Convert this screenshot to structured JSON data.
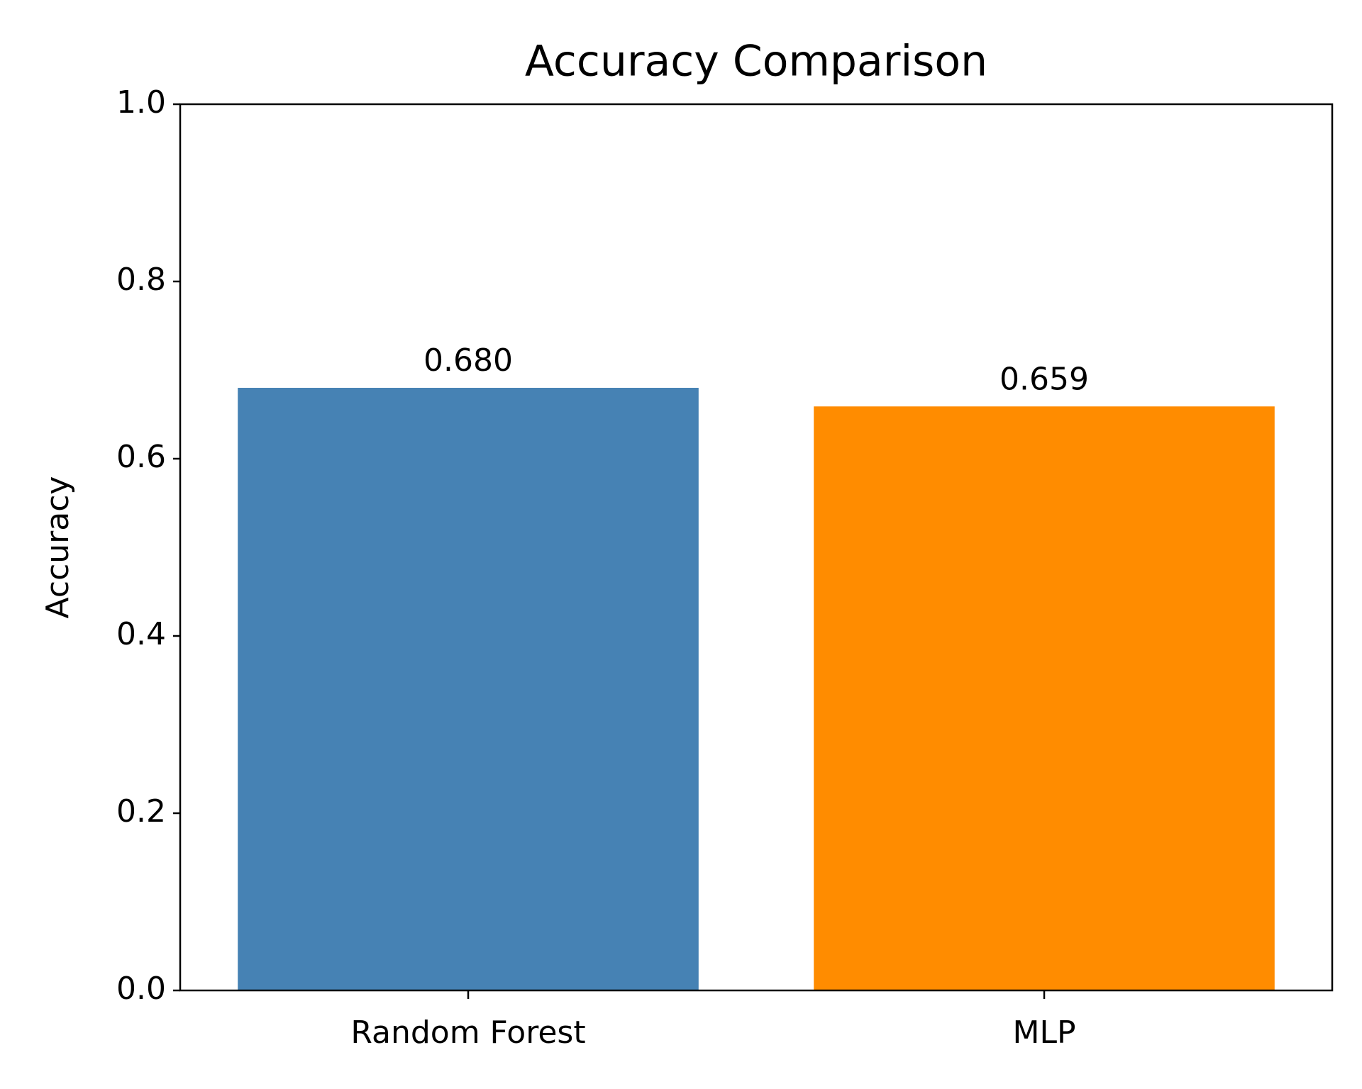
{
  "chart_data": {
    "type": "bar",
    "title": "Accuracy Comparison",
    "y_label": "Accuracy",
    "categories": [
      "Random Forest",
      "MLP"
    ],
    "values": [
      0.68,
      0.659
    ],
    "value_labels": [
      "0.680",
      "0.659"
    ],
    "colors": [
      "#4682b4",
      "#ff8c00"
    ],
    "ylim": [
      0,
      1
    ],
    "yticks": [
      {
        "value": 0,
        "label": "0.0"
      },
      0.2,
      0.4,
      0.6,
      0.8,
      {
        "value": 1,
        "label": "1.0"
      }
    ],
    "grid": false
  }
}
